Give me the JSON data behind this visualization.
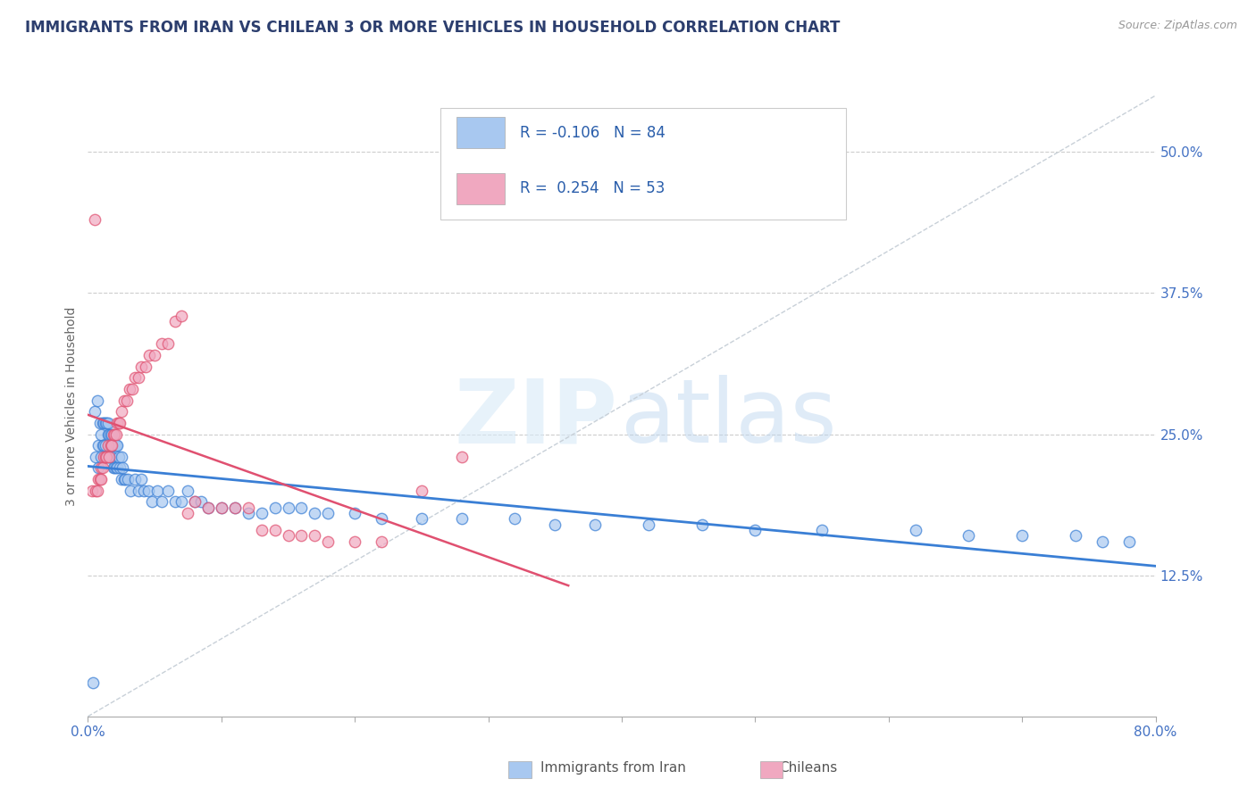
{
  "title": "IMMIGRANTS FROM IRAN VS CHILEAN 3 OR MORE VEHICLES IN HOUSEHOLD CORRELATION CHART",
  "source_text": "Source: ZipAtlas.com",
  "ylabel": "3 or more Vehicles in Household",
  "xlim": [
    0.0,
    0.8
  ],
  "ylim": [
    0.0,
    0.55
  ],
  "yticks": [
    0.125,
    0.25,
    0.375,
    0.5
  ],
  "ytick_labels": [
    "12.5%",
    "25.0%",
    "37.5%",
    "50.0%"
  ],
  "xtick_labels_bottom": [
    "0.0%",
    "80.0%"
  ],
  "legend_label_iran": "Immigrants from Iran",
  "legend_label_chilean": "Chileans",
  "color_iran": "#a8c8f0",
  "color_chilean": "#f0a8c0",
  "color_iran_line": "#3a7fd5",
  "color_chilean_line": "#e05070",
  "color_diag_line": "#c8d0d8",
  "iran_x": [
    0.004,
    0.005,
    0.006,
    0.007,
    0.008,
    0.008,
    0.009,
    0.01,
    0.01,
    0.011,
    0.011,
    0.012,
    0.012,
    0.013,
    0.013,
    0.014,
    0.014,
    0.015,
    0.015,
    0.015,
    0.016,
    0.016,
    0.017,
    0.017,
    0.018,
    0.018,
    0.019,
    0.019,
    0.02,
    0.02,
    0.021,
    0.021,
    0.022,
    0.022,
    0.023,
    0.024,
    0.025,
    0.025,
    0.026,
    0.027,
    0.028,
    0.03,
    0.032,
    0.035,
    0.038,
    0.04,
    0.042,
    0.045,
    0.048,
    0.052,
    0.055,
    0.06,
    0.065,
    0.07,
    0.075,
    0.08,
    0.085,
    0.09,
    0.1,
    0.11,
    0.12,
    0.13,
    0.14,
    0.15,
    0.16,
    0.17,
    0.18,
    0.2,
    0.22,
    0.25,
    0.28,
    0.32,
    0.35,
    0.38,
    0.42,
    0.46,
    0.5,
    0.55,
    0.62,
    0.66,
    0.7,
    0.74,
    0.76,
    0.78
  ],
  "iran_y": [
    0.03,
    0.27,
    0.23,
    0.28,
    0.24,
    0.22,
    0.26,
    0.25,
    0.23,
    0.26,
    0.24,
    0.26,
    0.24,
    0.26,
    0.24,
    0.26,
    0.23,
    0.26,
    0.25,
    0.23,
    0.25,
    0.23,
    0.25,
    0.23,
    0.25,
    0.23,
    0.24,
    0.22,
    0.24,
    0.22,
    0.24,
    0.22,
    0.24,
    0.22,
    0.23,
    0.22,
    0.23,
    0.21,
    0.22,
    0.21,
    0.21,
    0.21,
    0.2,
    0.21,
    0.2,
    0.21,
    0.2,
    0.2,
    0.19,
    0.2,
    0.19,
    0.2,
    0.19,
    0.19,
    0.2,
    0.19,
    0.19,
    0.185,
    0.185,
    0.185,
    0.18,
    0.18,
    0.185,
    0.185,
    0.185,
    0.18,
    0.18,
    0.18,
    0.175,
    0.175,
    0.175,
    0.175,
    0.17,
    0.17,
    0.17,
    0.17,
    0.165,
    0.165,
    0.165,
    0.16,
    0.16,
    0.16,
    0.155,
    0.155
  ],
  "chilean_x": [
    0.003,
    0.005,
    0.006,
    0.007,
    0.008,
    0.009,
    0.01,
    0.01,
    0.011,
    0.012,
    0.013,
    0.014,
    0.015,
    0.016,
    0.017,
    0.018,
    0.019,
    0.02,
    0.021,
    0.022,
    0.023,
    0.024,
    0.025,
    0.027,
    0.029,
    0.031,
    0.033,
    0.035,
    0.038,
    0.04,
    0.043,
    0.046,
    0.05,
    0.055,
    0.06,
    0.065,
    0.07,
    0.075,
    0.08,
    0.09,
    0.1,
    0.11,
    0.12,
    0.13,
    0.14,
    0.15,
    0.16,
    0.17,
    0.18,
    0.2,
    0.22,
    0.25,
    0.28
  ],
  "chilean_y": [
    0.2,
    0.44,
    0.2,
    0.2,
    0.21,
    0.21,
    0.21,
    0.22,
    0.22,
    0.23,
    0.23,
    0.23,
    0.24,
    0.23,
    0.24,
    0.24,
    0.25,
    0.25,
    0.25,
    0.26,
    0.26,
    0.26,
    0.27,
    0.28,
    0.28,
    0.29,
    0.29,
    0.3,
    0.3,
    0.31,
    0.31,
    0.32,
    0.32,
    0.33,
    0.33,
    0.35,
    0.355,
    0.18,
    0.19,
    0.185,
    0.185,
    0.185,
    0.185,
    0.165,
    0.165,
    0.16,
    0.16,
    0.16,
    0.155,
    0.155,
    0.155,
    0.2,
    0.23
  ]
}
